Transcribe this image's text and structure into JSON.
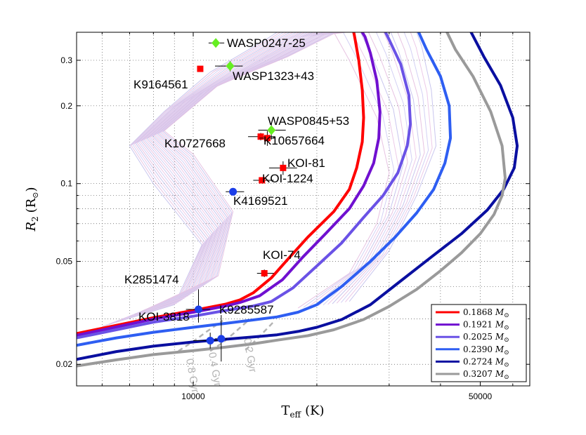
{
  "chart_data": {
    "type": "line",
    "title": "",
    "xlabel": "T_eff (K)",
    "xlabel_main": "T",
    "xlabel_sub": "eff",
    "xlabel_unit": "(K)",
    "ylabel": "R_2 (R_sun)",
    "ylabel_main": "R",
    "ylabel_sub": "2",
    "ylabel_unit": "(R",
    "ylabel_unit_sub": "⊙",
    "ylabel_close": ")",
    "x_scale": "log",
    "y_scale": "log",
    "xlim": [
      5200,
      66000
    ],
    "ylim": [
      0.0165,
      0.385
    ],
    "grid": true,
    "x_ticks": [
      {
        "value": 10000,
        "label": "10000"
      },
      {
        "value": 50000,
        "label": "50000"
      }
    ],
    "y_ticks": [
      {
        "value": 0.02,
        "label": "0.02"
      },
      {
        "value": 0.05,
        "label": "0.05"
      },
      {
        "value": 0.1,
        "label": "0.1"
      },
      {
        "value": 0.2,
        "label": "0.2"
      },
      {
        "value": 0.3,
        "label": "0.3"
      }
    ],
    "minor_x_grid": [
      6000,
      7000,
      8000,
      9000,
      20000,
      30000,
      40000,
      60000
    ],
    "minor_y_grid": [
      0.03,
      0.04,
      0.06,
      0.07,
      0.08,
      0.09
    ],
    "legend_position": "bottom-right",
    "series": [
      {
        "name": "0.1868",
        "unit": "M",
        "unit_sub": "⊙",
        "color": "#ff0000",
        "points": [
          [
            5200,
            0.0263
          ],
          [
            6500,
            0.0283
          ],
          [
            8000,
            0.0303
          ],
          [
            10000,
            0.0323
          ],
          [
            12000,
            0.0342
          ],
          [
            13000,
            0.0355
          ],
          [
            14000,
            0.0378
          ],
          [
            15500,
            0.0432
          ],
          [
            17000,
            0.051
          ],
          [
            19000,
            0.062
          ],
          [
            22000,
            0.078
          ],
          [
            24000,
            0.095
          ],
          [
            25000,
            0.115
          ],
          [
            25800,
            0.145
          ],
          [
            26000,
            0.18
          ],
          [
            25800,
            0.23
          ],
          [
            25300,
            0.3
          ],
          [
            24800,
            0.36
          ],
          [
            24600,
            0.385
          ]
        ]
      },
      {
        "name": "0.1921",
        "unit": "M",
        "unit_sub": "⊙",
        "color": "#7010d0",
        "points": [
          [
            5200,
            0.0259
          ],
          [
            6500,
            0.0279
          ],
          [
            8000,
            0.0299
          ],
          [
            10000,
            0.0318
          ],
          [
            12000,
            0.0336
          ],
          [
            13000,
            0.0347
          ],
          [
            14500,
            0.0368
          ],
          [
            16500,
            0.0425
          ],
          [
            18500,
            0.052
          ],
          [
            21000,
            0.064
          ],
          [
            24000,
            0.08
          ],
          [
            26000,
            0.098
          ],
          [
            27500,
            0.12
          ],
          [
            28300,
            0.15
          ],
          [
            28500,
            0.19
          ],
          [
            28000,
            0.25
          ],
          [
            27000,
            0.32
          ],
          [
            26200,
            0.37
          ],
          [
            25800,
            0.385
          ]
        ]
      },
      {
        "name": "0.2025",
        "unit": "M",
        "unit_sub": "⊙",
        "color": "#6a52e6",
        "points": [
          [
            5200,
            0.0253
          ],
          [
            6500,
            0.0272
          ],
          [
            8000,
            0.0291
          ],
          [
            10000,
            0.0307
          ],
          [
            12000,
            0.0323
          ],
          [
            14000,
            0.0336
          ],
          [
            15500,
            0.035
          ],
          [
            17500,
            0.0395
          ],
          [
            20000,
            0.048
          ],
          [
            23000,
            0.059
          ],
          [
            26000,
            0.074
          ],
          [
            29000,
            0.09
          ],
          [
            31500,
            0.11
          ],
          [
            33200,
            0.14
          ],
          [
            33800,
            0.17
          ],
          [
            33500,
            0.22
          ],
          [
            32000,
            0.29
          ],
          [
            30000,
            0.36
          ],
          [
            29400,
            0.385
          ]
        ]
      },
      {
        "name": "0.2390",
        "unit": "M",
        "unit_sub": "⊙",
        "color": "#2e5ef2",
        "points": [
          [
            5200,
            0.0237
          ],
          [
            6500,
            0.0253
          ],
          [
            8000,
            0.0266
          ],
          [
            10000,
            0.0278
          ],
          [
            12000,
            0.0288
          ],
          [
            14000,
            0.0297
          ],
          [
            16000,
            0.0305
          ],
          [
            18000,
            0.0318
          ],
          [
            20000,
            0.034
          ],
          [
            23000,
            0.04
          ],
          [
            27000,
            0.05
          ],
          [
            31000,
            0.062
          ],
          [
            35000,
            0.077
          ],
          [
            38500,
            0.095
          ],
          [
            41000,
            0.12
          ],
          [
            42300,
            0.15
          ],
          [
            42000,
            0.2
          ],
          [
            40000,
            0.26
          ],
          [
            37000,
            0.33
          ],
          [
            35400,
            0.385
          ]
        ]
      },
      {
        "name": "0.2724",
        "unit": "M",
        "unit_sub": "⊙",
        "color": "#0a0fa0",
        "points": [
          [
            5200,
            0.0209
          ],
          [
            6500,
            0.0224
          ],
          [
            8000,
            0.0235
          ],
          [
            10000,
            0.0244
          ],
          [
            12000,
            0.025
          ],
          [
            14000,
            0.0255
          ],
          [
            16000,
            0.026
          ],
          [
            18000,
            0.0268
          ],
          [
            20000,
            0.0278
          ],
          [
            23000,
            0.0298
          ],
          [
            27000,
            0.034
          ],
          [
            32000,
            0.042
          ],
          [
            38000,
            0.052
          ],
          [
            45000,
            0.064
          ],
          [
            52000,
            0.079
          ],
          [
            57000,
            0.095
          ],
          [
            60500,
            0.115
          ],
          [
            61500,
            0.14
          ],
          [
            60000,
            0.18
          ],
          [
            56000,
            0.24
          ],
          [
            51000,
            0.31
          ],
          [
            47500,
            0.385
          ]
        ]
      },
      {
        "name": "0.3207",
        "unit": "M",
        "unit_sub": "⊙",
        "color": "#9a9a9a",
        "points": [
          [
            5200,
            0.0197
          ],
          [
            6500,
            0.0208
          ],
          [
            8000,
            0.0218
          ],
          [
            10000,
            0.0226
          ],
          [
            12000,
            0.0233
          ],
          [
            14000,
            0.024
          ],
          [
            16000,
            0.0248
          ],
          [
            19000,
            0.0258
          ],
          [
            22000,
            0.0272
          ],
          [
            26000,
            0.0298
          ],
          [
            30000,
            0.0335
          ],
          [
            35000,
            0.039
          ],
          [
            40000,
            0.046
          ],
          [
            45000,
            0.054
          ],
          [
            50000,
            0.064
          ],
          [
            54000,
            0.076
          ],
          [
            56500,
            0.09
          ],
          [
            57500,
            0.105
          ],
          [
            56500,
            0.14
          ],
          [
            53000,
            0.19
          ],
          [
            48000,
            0.26
          ],
          [
            43500,
            0.33
          ],
          [
            41500,
            0.385
          ]
        ]
      }
    ],
    "isochrones": [
      {
        "label": "0.8 Gyr",
        "points": [
          [
            9200,
            0.0225
          ],
          [
            10000,
            0.0245
          ],
          [
            10800,
            0.0268
          ],
          [
            11800,
            0.0295
          ]
        ]
      },
      {
        "label": "0.4 Gyr",
        "points": [
          [
            11000,
            0.0225
          ],
          [
            11900,
            0.0245
          ],
          [
            12700,
            0.0268
          ],
          [
            13600,
            0.0295
          ]
        ]
      },
      {
        "label": "0.2 Gyr",
        "points": [
          [
            13400,
            0.0227
          ],
          [
            14100,
            0.0245
          ],
          [
            14900,
            0.0268
          ],
          [
            15800,
            0.0295
          ]
        ]
      }
    ],
    "stars": [
      {
        "name": "WASP0247-25",
        "teff": 11350,
        "r": 0.35,
        "marker": "diamond",
        "color": "#66ee22",
        "xerr": [
          10900,
          11900
        ],
        "yerr": null
      },
      {
        "name": "WASP1323+43",
        "teff": 12300,
        "r": 0.285,
        "marker": "diamond",
        "color": "#66ee22",
        "xerr": [
          11300,
          13200
        ],
        "yerr": [
          0.272,
          0.298
        ]
      },
      {
        "name": "K9164561",
        "teff": 10400,
        "r": 0.278,
        "marker": "square",
        "color": "#ff0000",
        "xerr": null,
        "yerr": null
      },
      {
        "name": "WASP0845+53",
        "teff": 15500,
        "r": 0.161,
        "marker": "diamond",
        "color": "#66ee22",
        "xerr": [
          14400,
          16800
        ],
        "yerr": [
          0.148,
          0.172
        ]
      },
      {
        "name": "K10727668",
        "teff": 14600,
        "r": 0.152,
        "marker": "square",
        "color": "#ff0000",
        "xerr": [
          13600,
          15800
        ],
        "yerr": [
          0.147,
          0.157
        ]
      },
      {
        "name": "K10657664",
        "teff": 15150,
        "r": 0.15,
        "marker": "square",
        "color": "#ff0000",
        "xerr": [
          14500,
          15800
        ],
        "yerr": [
          0.14,
          0.16
        ]
      },
      {
        "name": "KOI-81",
        "teff": 16550,
        "r": 0.115,
        "marker": "square",
        "color": "#ff0000",
        "xerr": [
          15300,
          17900
        ],
        "yerr": [
          0.108,
          0.122
        ]
      },
      {
        "name": "KOI-1224",
        "teff": 14700,
        "r": 0.103,
        "marker": "square",
        "color": "#ff0000",
        "xerr": [
          14000,
          15700
        ],
        "yerr": null
      },
      {
        "name": "K4169521",
        "teff": 12500,
        "r": 0.093,
        "marker": "circle",
        "color": "#1c3ee8",
        "xerr": [
          12000,
          13300
        ],
        "yerr": null
      },
      {
        "name": "KOI-74",
        "teff": 14900,
        "r": 0.045,
        "marker": "square",
        "color": "#ff0000",
        "xerr": [
          14300,
          15700
        ],
        "yerr": [
          0.0435,
          0.0465
        ]
      },
      {
        "name": "K2851474",
        "teff": 10300,
        "r": 0.0326,
        "marker": "circle",
        "color": "#1c3ee8",
        "xerr": [
          9600,
          11000
        ],
        "yerr": [
          0.029,
          0.039
        ]
      },
      {
        "name": "KOI-3818",
        "teff": 11000,
        "r": 0.0247,
        "marker": "circle",
        "color": "#1c3ee8",
        "xerr": [
          10000,
          11600
        ],
        "yerr": [
          0.023,
          0.0265
        ]
      },
      {
        "name": "K9285587",
        "teff": 11700,
        "r": 0.0251,
        "marker": "circle",
        "color": "#1c3ee8",
        "xerr": [
          11300,
          12100
        ],
        "yerr": [
          0.0205,
          0.031
        ]
      }
    ]
  }
}
